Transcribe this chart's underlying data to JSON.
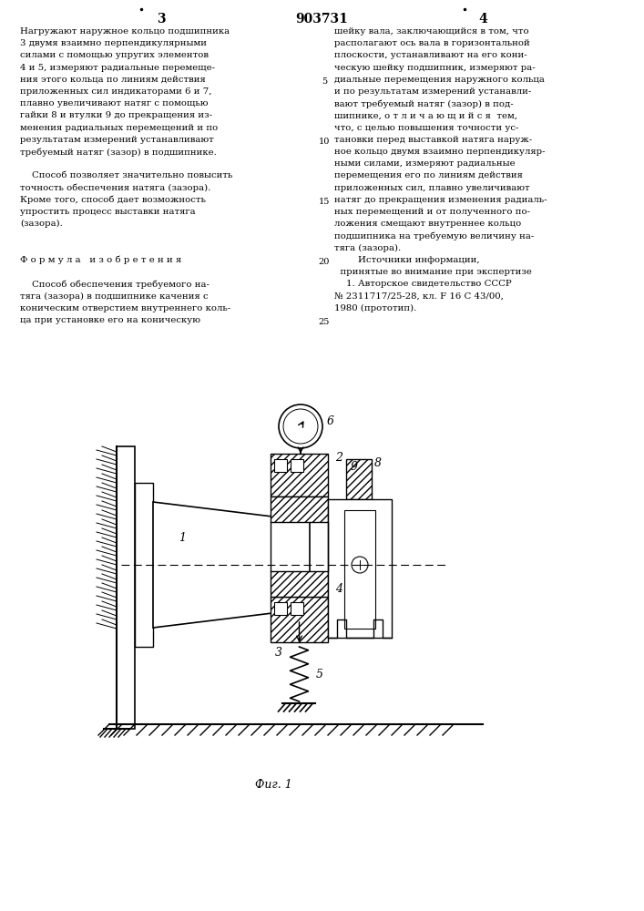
{
  "background_color": "#ffffff",
  "page_number_left": "3",
  "page_number_center": "903731",
  "page_number_right": "4",
  "left_column_text": [
    "Нагружают наружное кольцо подшипника",
    "3 двумя взаимно перпендикулярными",
    "силами с помощью упругих элементов",
    "4 и 5, измеряют радиальные перемеще-",
    "ния этого кольца по линиям действия",
    "приложенных сил индикаторами 6 и 7,",
    "плавно увеличивают натяг с помощью",
    "гайки 8 и втулки 9 до прекращения из-",
    "менения радиальных перемещений и по",
    "результатам измерений устанавливают",
    "требуемый натяг (зазор) в подшипнике.",
    "",
    "    Способ позволяет значительно повысить",
    "точность обеспечения натяга (зазора).",
    "Кроме того, способ дает возможность",
    "упростить процесс выставки натяга",
    "(зазора).",
    "",
    "",
    "Ф о р м у л а   и з о б р е т е н и я",
    "",
    "    Способ обеспечения требуемого на-",
    "тяга (зазора) в подшипнике качения с",
    "коническим отверстием внутреннего коль-",
    "ца при установке его на коническую"
  ],
  "right_column_text": [
    "шейку вала, заключающийся в том, что",
    "располагают ось вала в горизонтальной",
    "плоскости, устанавливают на его кони-",
    "ческую шейку подшипник, измеряют ра-",
    "диальные перемещения наружного кольца",
    "и по результатам измерений устанавли-",
    "вают требуемый натяг (зазор) в под-",
    "шипнике, о т л и ч а ю щ и й с я  тем,",
    "что, с целью повышения точности ус-",
    "тановки перед выставкой натяга наруж-",
    "ное кольцо двумя взаимно перпендикуляр-",
    "ными силами, измеряют радиальные",
    "перемещения его по линиям действия",
    "приложенных сил, плавно увеличивают",
    "натяг до прекращения изменения радиаль-",
    "ных перемещений и от полученного по-",
    "ложения смещают внутреннее кольцо",
    "подшипника на требуемую величину на-",
    "тяга (зазора).",
    "        Источники информации,",
    "  принятые во внимание при экспертизе",
    "    1. Авторское свидетельство СССР",
    "№ 2311717/25-28, кл. F 16 C 43/00,",
    "1980 (прототип)."
  ],
  "line_numbers": {
    "4": "5",
    "9": "10",
    "14": "15",
    "19": "20",
    "24": "25"
  },
  "fig_caption": "Фиг. 1"
}
